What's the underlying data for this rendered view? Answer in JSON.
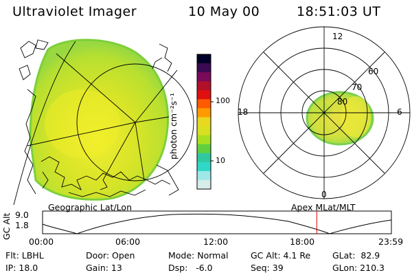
{
  "header": {
    "app_title": "Ultraviolet Imager",
    "date": "10 May 00",
    "time": "18:51:03 UT"
  },
  "colorbar": {
    "title": "photon cm⁻²s⁻¹",
    "ticks": [
      "100",
      "10"
    ],
    "colors": [
      "#000028",
      "#3a0a52",
      "#7a0a5a",
      "#b0102a",
      "#e01010",
      "#ff5a00",
      "#ff9a00",
      "#e8d820",
      "#d8e020",
      "#a8e020",
      "#60d040",
      "#30c8a0",
      "#30d8c8",
      "#a0e8e8",
      "#d8ecec"
    ]
  },
  "polar": {
    "labels": [
      "12",
      "60",
      "70",
      "80",
      "18",
      "6",
      "0"
    ]
  },
  "timeline": {
    "left_label": "Geographic Lat/Lon",
    "right_label": "Apex MLat/MLT",
    "axis_label": "GC Alt",
    "y_ticks": [
      "9.0",
      "1.8"
    ],
    "time_ticks": [
      "00:00",
      "06:00",
      "12:00",
      "18:00",
      "23:59"
    ],
    "marker_time_hours": 18.85,
    "marker_color": "#e00000"
  },
  "info": {
    "flt": "Flt: LBHL",
    "ip": "IP: 18.0",
    "door": "Door: Open",
    "gain": "Gain: 13",
    "mode": "Mode: Normal",
    "dsp": "Dsp:   -6.0",
    "gc_alt": "GC Alt: 4.1 Re",
    "seq": "Seq: 39",
    "glat": "GLat:  82.9",
    "glon": "GLon: 210.3"
  }
}
